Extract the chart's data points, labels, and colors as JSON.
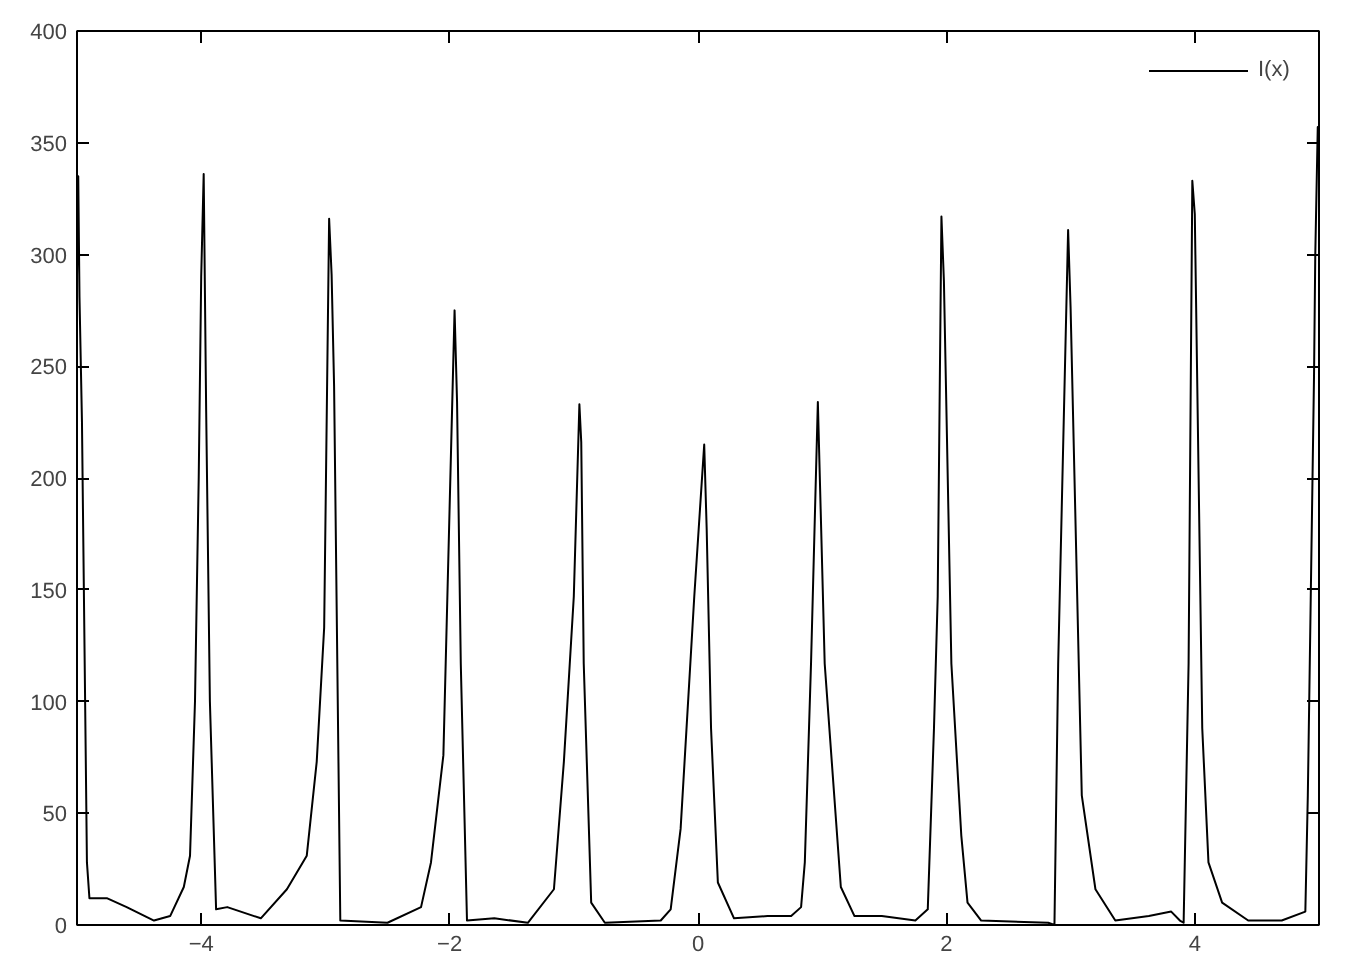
{
  "chart_data": {
    "type": "line",
    "xlim": [
      -5,
      5
    ],
    "ylim": [
      0,
      400
    ],
    "xticks": [
      -4,
      -2,
      0,
      2,
      4
    ],
    "yticks": [
      0,
      50,
      100,
      150,
      200,
      250,
      300,
      350,
      400
    ],
    "grid": false,
    "legend": "top right",
    "marker": "none",
    "line_style": "solid",
    "series": [
      {
        "name": "I(x)",
        "color": "#000000",
        "x": [
          -5,
          -4.99,
          -4.98,
          -4.96,
          -4.92,
          -4.9,
          -4.76,
          -4.6,
          -4.38,
          -4.25,
          -4.14,
          -4.09,
          -4.05,
          -4.02,
          -4.0,
          -3.98,
          -3.96,
          -3.93,
          -3.88,
          -3.79,
          -3.52,
          -3.31,
          -3.15,
          -3.07,
          -3.01,
          -2.97,
          -2.95,
          -2.93,
          -2.88,
          -2.5,
          -2.23,
          -2.15,
          -2.05,
          -1.96,
          -1.94,
          -1.91,
          -1.86,
          -1.64,
          -1.37,
          -1.16,
          -1.08,
          -1.0,
          -0.955,
          -0.94,
          -0.92,
          -0.86,
          -0.75,
          -0.3,
          -0.22,
          -0.14,
          -0.03,
          0.05,
          0.07,
          0.105,
          0.16,
          0.29,
          0.56,
          0.75,
          0.83,
          0.86,
          0.91,
          0.965,
          1.02,
          1.15,
          1.26,
          1.48,
          1.75,
          1.85,
          1.9,
          1.93,
          1.96,
          1.98,
          2.04,
          2.12,
          2.17,
          2.28,
          2.82,
          2.87,
          2.9,
          2.98,
          3.0,
          3.09,
          3.2,
          3.36,
          3.63,
          3.81,
          3.88,
          3.91,
          3.95,
          3.98,
          4.0,
          4.06,
          4.11,
          4.22,
          4.43,
          4.7,
          4.89,
          4.91,
          4.96,
          4.97,
          4.99,
          5.0
        ],
        "values": [
          290,
          335,
          281,
          225,
          28,
          12,
          12,
          8,
          2,
          4,
          17,
          31,
          100,
          200,
          290,
          336,
          230,
          100,
          7,
          8,
          3,
          16,
          31,
          73,
          133,
          316,
          291,
          241,
          2,
          1,
          8,
          28,
          76,
          275,
          234,
          117,
          2,
          3,
          1,
          16,
          73,
          147,
          233,
          216,
          117,
          10,
          1,
          2,
          7,
          43,
          147,
          215,
          177,
          88,
          19,
          3,
          4,
          4,
          8,
          28,
          117,
          234,
          117,
          17,
          4,
          4,
          2,
          7,
          88,
          147,
          317,
          288,
          117,
          40,
          10,
          2,
          1,
          0,
          117,
          311,
          276,
          58,
          16,
          2,
          4,
          6,
          2,
          1,
          117,
          333,
          318,
          88,
          28,
          10,
          2,
          2,
          6,
          58,
          246,
          300,
          357,
          357
        ]
      }
    ]
  }
}
